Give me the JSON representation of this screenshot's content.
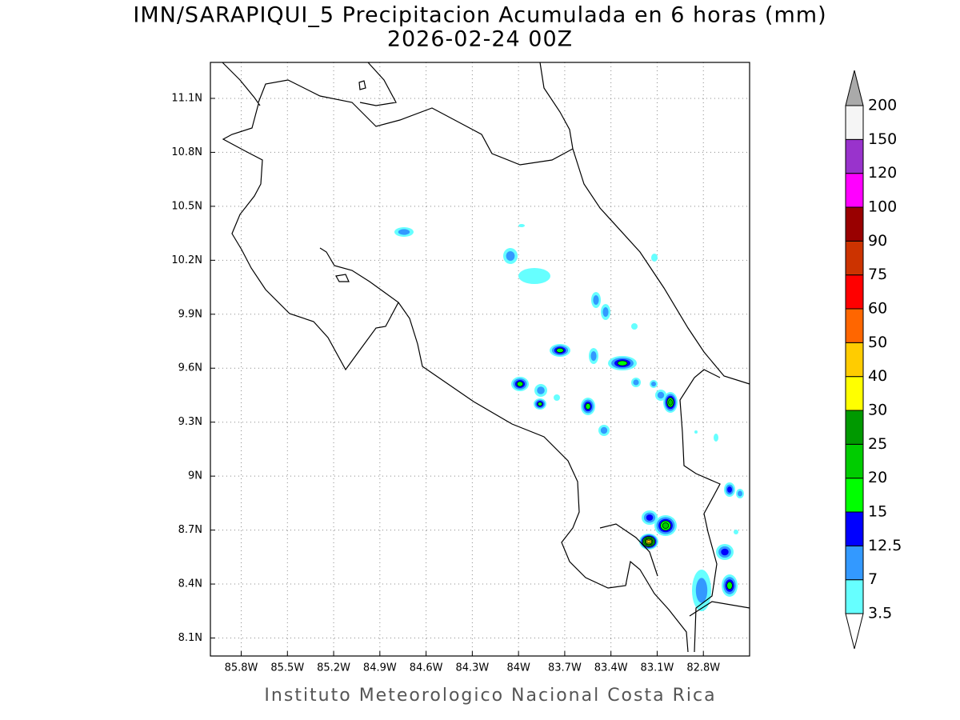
{
  "title": "IMN/SARAPIQUI_5 Precipitacion Acumulada en 6 horas (mm)",
  "subtitle": "2026-02-24 00Z",
  "footer": "Instituto Meteorologico Nacional Costa Rica",
  "map": {
    "xlim": [
      -86.0,
      -82.5
    ],
    "ylim": [
      8.0,
      11.3
    ],
    "grid": true,
    "xticks": [
      {
        "value": -85.8,
        "label": "85.8W"
      },
      {
        "value": -85.5,
        "label": "85.5W"
      },
      {
        "value": -85.2,
        "label": "85.2W"
      },
      {
        "value": -84.9,
        "label": "84.9W"
      },
      {
        "value": -84.6,
        "label": "84.6W"
      },
      {
        "value": -84.3,
        "label": "84.3W"
      },
      {
        "value": -84.0,
        "label": "84W"
      },
      {
        "value": -83.7,
        "label": "83.7W"
      },
      {
        "value": -83.4,
        "label": "83.4W"
      },
      {
        "value": -83.1,
        "label": "83.1W"
      },
      {
        "value": -82.8,
        "label": "82.8W"
      }
    ],
    "yticks": [
      {
        "value": 8.1,
        "label": "8.1N"
      },
      {
        "value": 8.4,
        "label": "8.4N"
      },
      {
        "value": 8.7,
        "label": "8.7N"
      },
      {
        "value": 9.0,
        "label": "9N"
      },
      {
        "value": 9.3,
        "label": "9.3N"
      },
      {
        "value": 9.6,
        "label": "9.6N"
      },
      {
        "value": 9.9,
        "label": "9.9N"
      },
      {
        "value": 10.2,
        "label": "10.2N"
      },
      {
        "value": 10.5,
        "label": "10.5N"
      },
      {
        "value": 10.8,
        "label": "10.8N"
      },
      {
        "value": 11.1,
        "label": "11.1N"
      }
    ]
  },
  "colorbar": {
    "levels": [
      3.5,
      7,
      12.5,
      15,
      20,
      25,
      30,
      40,
      50,
      60,
      75,
      90,
      100,
      120,
      150,
      200
    ],
    "colors": [
      "#ffffff",
      "#66ffff",
      "#3399ff",
      "#0000ff",
      "#00ff00",
      "#00cc00",
      "#009900",
      "#ffff00",
      "#ffcc00",
      "#ff6600",
      "#ff0000",
      "#cc3300",
      "#990000",
      "#ff00ff",
      "#9933cc",
      "#f5f5f5",
      "#aaaaaa"
    ]
  }
}
